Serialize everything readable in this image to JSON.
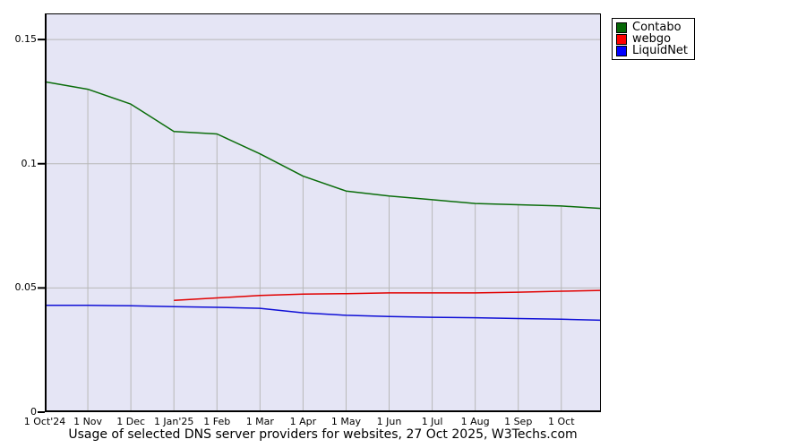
{
  "page": {
    "background": "#ffffff"
  },
  "legend": {
    "items": [
      {
        "label": "Contabo",
        "swatch_color": "#066806"
      },
      {
        "label": "webgo",
        "swatch_color": "#ff0000"
      },
      {
        "label": "LiquidNet",
        "swatch_color": "#0000ff"
      }
    ]
  },
  "chart_data": {
    "type": "line",
    "title": "Usage of selected DNS server providers for websites, 27 Oct 2025, W3Techs.com",
    "x_tick_labels": [
      "1 Oct'24",
      "1 Nov",
      "1 Dec",
      "1 Jan'25",
      "1 Feb",
      "1 Mar",
      "1 Apr",
      "1 May",
      "1 Jun",
      "1 Jul",
      "1 Aug",
      "1 Sep",
      "1 Oct"
    ],
    "x_index": [
      0,
      1,
      2,
      3,
      4,
      5,
      6,
      7,
      8,
      9,
      10,
      11,
      12,
      12.92
    ],
    "xlim": [
      0,
      12.92
    ],
    "ylim": [
      0,
      0.1605
    ],
    "y_ticks": [
      {
        "value": 0.15,
        "label": "0.15"
      },
      {
        "value": 0.1,
        "label": "0.1"
      },
      {
        "value": 0.05,
        "label": "0.05"
      },
      {
        "value": 0,
        "label": "0"
      }
    ],
    "y_gridlines": [
      0.05,
      0.1,
      0.15
    ],
    "grid": true,
    "legend_position": "top-right-outside",
    "droplines_from_series": "Contabo",
    "series": [
      {
        "name": "Contabo",
        "color": "#0b6d0b",
        "values": [
          0.133,
          0.13,
          0.124,
          0.113,
          0.112,
          0.104,
          0.095,
          0.089,
          0.087,
          0.0855,
          0.084,
          0.0835,
          0.083,
          0.082
        ]
      },
      {
        "name": "webgo",
        "color": "#e10000",
        "values": [
          null,
          null,
          null,
          0.045,
          0.046,
          0.047,
          0.0475,
          0.0477,
          0.048,
          0.048,
          0.048,
          0.0483,
          0.0487,
          0.049
        ]
      },
      {
        "name": "LiquidNet",
        "color": "#0f0fd6",
        "values": [
          0.043,
          0.043,
          0.0428,
          0.0425,
          0.0422,
          0.0418,
          0.04,
          0.039,
          0.0385,
          0.0382,
          0.038,
          0.0377,
          0.0374,
          0.037
        ]
      }
    ],
    "plot_style": {
      "background": "#e5e5f5",
      "gridline_color": "#b8b8b8",
      "axis_color": "#000000"
    }
  }
}
